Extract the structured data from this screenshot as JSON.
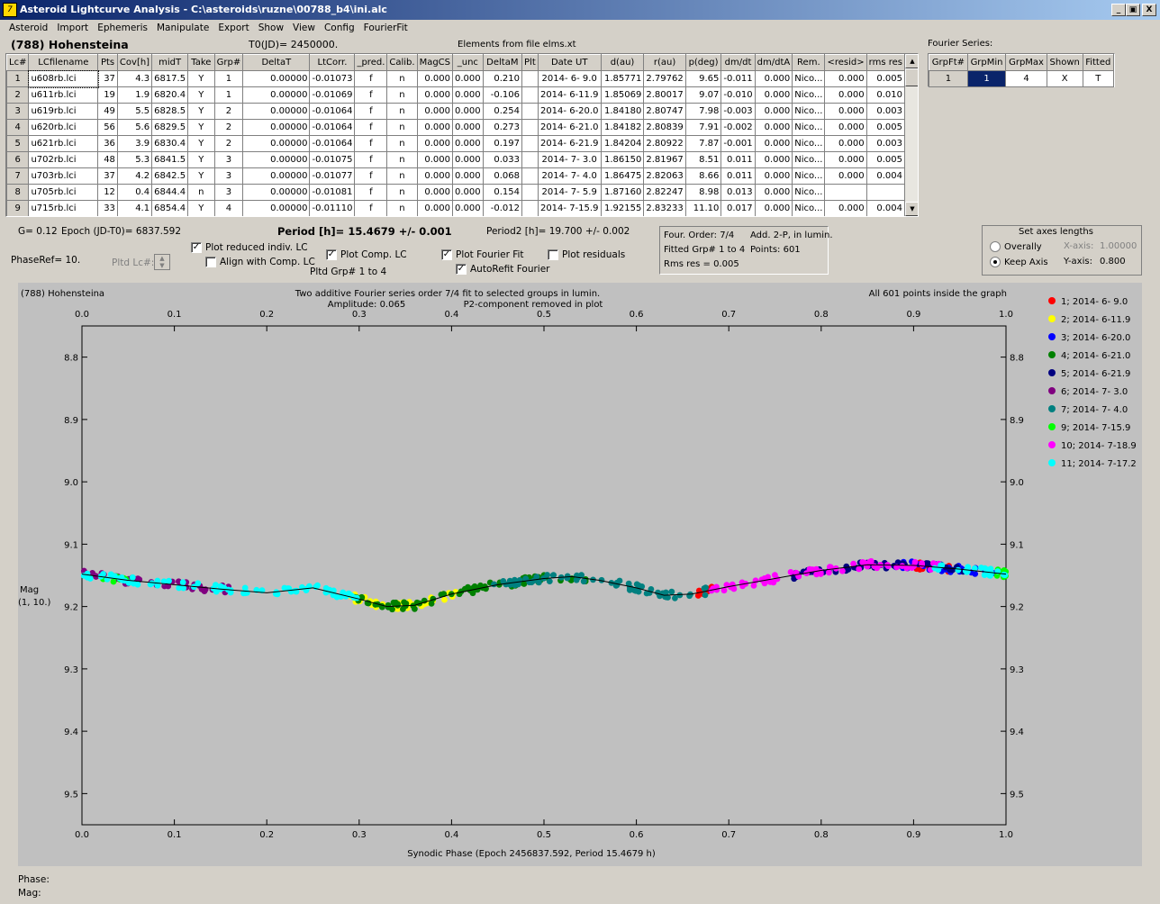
{
  "window": {
    "title": "Asteroid Lightcurve Analysis - C:\\asteroids\\ruzne\\00788_b4\\ini.alc",
    "icon": "app-icon",
    "controls": [
      "_",
      "Д",
      "X"
    ]
  },
  "menu": [
    "Asteroid",
    "Import",
    "Ephemeris",
    "Manipulate",
    "Export",
    "Show",
    "View",
    "Config",
    "FourierFit"
  ],
  "header": {
    "asteroid": "(788) Hohensteina",
    "t0": "T0(JD)= 2450000.",
    "elements": "Elements from file elms.xt"
  },
  "lc_table": {
    "columns": [
      "Lc#",
      "LCfilename",
      "Pts",
      "Cov[h]",
      "midT",
      "Take",
      "Grp#",
      "DeltaT",
      "LtCorr.",
      "_pred.",
      "Calib.",
      "MagCS",
      "_unc",
      "DeltaM",
      "Plt",
      "Date UT",
      "d(au)",
      "r(au)",
      "p(deg)",
      "dm/dt",
      "dm/dtA",
      "Rem.",
      "<resid>",
      "rms res"
    ],
    "rows": [
      [
        "1",
        "u608rb.lci",
        "37",
        "4.3",
        "6817.5",
        "Y",
        "1",
        "0.00000",
        "-0.01073",
        "f",
        "n",
        "0.000",
        "0.000",
        "0.210",
        "",
        "2014- 6- 9.0",
        "1.85771",
        "2.79762",
        "9.65",
        "-0.011",
        "0.000",
        "Nico...",
        "0.000",
        "0.005"
      ],
      [
        "2",
        "u611rb.lci",
        "19",
        "1.9",
        "6820.4",
        "Y",
        "1",
        "0.00000",
        "-0.01069",
        "f",
        "n",
        "0.000",
        "0.000",
        "-0.106",
        "",
        "2014- 6-11.9",
        "1.85069",
        "2.80017",
        "9.07",
        "-0.010",
        "0.000",
        "Nico...",
        "0.000",
        "0.010"
      ],
      [
        "3",
        "u619rb.lci",
        "49",
        "5.5",
        "6828.5",
        "Y",
        "2",
        "0.00000",
        "-0.01064",
        "f",
        "n",
        "0.000",
        "0.000",
        "0.254",
        "",
        "2014- 6-20.0",
        "1.84180",
        "2.80747",
        "7.98",
        "-0.003",
        "0.000",
        "Nico...",
        "0.000",
        "0.003"
      ],
      [
        "4",
        "u620rb.lci",
        "56",
        "5.6",
        "6829.5",
        "Y",
        "2",
        "0.00000",
        "-0.01064",
        "f",
        "n",
        "0.000",
        "0.000",
        "0.273",
        "",
        "2014- 6-21.0",
        "1.84182",
        "2.80839",
        "7.91",
        "-0.002",
        "0.000",
        "Nico...",
        "0.000",
        "0.005"
      ],
      [
        "5",
        "u621rb.lci",
        "36",
        "3.9",
        "6830.4",
        "Y",
        "2",
        "0.00000",
        "-0.01064",
        "f",
        "n",
        "0.000",
        "0.000",
        "0.197",
        "",
        "2014- 6-21.9",
        "1.84204",
        "2.80922",
        "7.87",
        "-0.001",
        "0.000",
        "Nico...",
        "0.000",
        "0.003"
      ],
      [
        "6",
        "u702rb.lci",
        "48",
        "5.3",
        "6841.5",
        "Y",
        "3",
        "0.00000",
        "-0.01075",
        "f",
        "n",
        "0.000",
        "0.000",
        "0.033",
        "",
        "2014- 7- 3.0",
        "1.86150",
        "2.81967",
        "8.51",
        "0.011",
        "0.000",
        "Nico...",
        "0.000",
        "0.005"
      ],
      [
        "7",
        "u703rb.lci",
        "37",
        "4.2",
        "6842.5",
        "Y",
        "3",
        "0.00000",
        "-0.01077",
        "f",
        "n",
        "0.000",
        "0.000",
        "0.068",
        "",
        "2014- 7- 4.0",
        "1.86475",
        "2.82063",
        "8.66",
        "0.011",
        "0.000",
        "Nico...",
        "0.000",
        "0.004"
      ],
      [
        "8",
        "u705rb.lci",
        "12",
        "0.4",
        "6844.4",
        "n",
        "3",
        "0.00000",
        "-0.01081",
        "f",
        "n",
        "0.000",
        "0.000",
        "0.154",
        "",
        "2014- 7- 5.9",
        "1.87160",
        "2.82247",
        "8.98",
        "0.013",
        "0.000",
        "Nico...",
        "",
        ""
      ],
      [
        "9",
        "u715rb.lci",
        "33",
        "4.1",
        "6854.4",
        "Y",
        "4",
        "0.00000",
        "-0.01110",
        "f",
        "n",
        "0.000",
        "0.000",
        "-0.012",
        "",
        "2014- 7-15.9",
        "1.92155",
        "2.83233",
        "11.10",
        "0.017",
        "0.000",
        "Nico...",
        "0.000",
        "0.004"
      ]
    ]
  },
  "fourier_table": {
    "title": "Fourier Series:",
    "columns": [
      "GrpFt#",
      "GrpMin",
      "GrpMax",
      "Shown",
      "Fitted"
    ],
    "row": [
      "1",
      "1",
      "4",
      "X",
      "T"
    ]
  },
  "info": {
    "g": "G= 0.12",
    "epoch": "Epoch (JD-T0)= 6837.592",
    "period": "Period [h]= 15.4679 +/- 0.001",
    "period2": "Period2 [h]= 19.700 +/- 0.002",
    "phaseref": "PhaseRef= 10.",
    "pltd_lc": "Pltd Lc#:",
    "pltd_grp": "Pltd Grp# 1 to 4"
  },
  "checks": [
    {
      "label": "Plot reduced indiv. LC",
      "checked": true
    },
    {
      "label": "Align with Comp. LC",
      "checked": false
    },
    {
      "label": "Plot Comp. LC",
      "checked": true
    },
    {
      "label": "Plot Fourier Fit",
      "checked": true
    },
    {
      "label": "AutoRefit Fourier",
      "checked": true
    },
    {
      "label": "Plot residuals",
      "checked": false
    }
  ],
  "fit_box": {
    "order": "Four. Order:  7/4",
    "add": "Add. 2-P, in lumin.",
    "fitted": "Fitted Grp# 1 to 4",
    "points": "Points: 601",
    "rms": "Rms res    = 0.005"
  },
  "axes_box": {
    "title": "Set axes lengths",
    "overall": "Overally",
    "keep": "Keep Axis",
    "xaxis_label": "X-axis:",
    "xaxis_value": "1.00000",
    "yaxis_label": "Y-axis:",
    "yaxis_value": "0.800"
  },
  "status": {
    "phase": "Phase:",
    "mag": "Mag:"
  },
  "chart_data": {
    "type": "scatter",
    "title": "Two additive Fourier series order 7/4 fit to selected groups in lumin.",
    "subtitle_left": "Amplitude: 0.065",
    "subtitle_right": "P2-component removed in plot",
    "corner_left": "(788) Hohensteina",
    "corner_right": "All 601 points inside the graph",
    "xlabel": "Synodic Phase (Epoch 2456837.592, Period 15.4679 h)",
    "ylabel": "Mag",
    "ylabel2": "(1, 10.)",
    "xlim": [
      0.0,
      1.0
    ],
    "ylim": [
      8.75,
      9.55
    ],
    "xticks": [
      "0.0",
      "0.1",
      "0.2",
      "0.3",
      "0.4",
      "0.5",
      "0.6",
      "0.7",
      "0.8",
      "0.9",
      "1.0"
    ],
    "yticks": [
      "8.8",
      "8.9",
      "9.0",
      "9.1",
      "9.2",
      "9.3",
      "9.4",
      "9.5"
    ],
    "fit_curve": {
      "x": [
        0.0,
        0.05,
        0.1,
        0.15,
        0.2,
        0.25,
        0.3,
        0.33,
        0.36,
        0.4,
        0.45,
        0.5,
        0.53,
        0.56,
        0.6,
        0.63,
        0.66,
        0.7,
        0.75,
        0.8,
        0.85,
        0.9,
        0.95,
        1.0
      ],
      "y": [
        9.148,
        9.158,
        9.165,
        9.172,
        9.178,
        9.17,
        9.188,
        9.2,
        9.198,
        9.18,
        9.165,
        9.155,
        9.152,
        9.158,
        9.17,
        9.182,
        9.18,
        9.168,
        9.155,
        9.142,
        9.133,
        9.134,
        9.14,
        9.148
      ]
    },
    "series": [
      {
        "name": "1; 2014- 6- 9.0",
        "color": "#ff0000",
        "ranges": [
          [
            0.665,
            0.69
          ],
          [
            0.9,
            0.94
          ]
        ]
      },
      {
        "name": "2; 2014- 6-11.9",
        "color": "#ffff00",
        "ranges": [
          [
            0.285,
            0.41
          ]
        ]
      },
      {
        "name": "3; 2014- 6-20.0",
        "color": "#0000ff",
        "ranges": [
          [
            0.88,
            0.99
          ]
        ]
      },
      {
        "name": "4; 2014- 6-21.0",
        "color": "#008000",
        "ranges": [
          [
            0.29,
            0.44
          ],
          [
            0.42,
            0.55
          ]
        ]
      },
      {
        "name": "5; 2014- 6-21.9",
        "color": "#000080",
        "ranges": [
          [
            0.77,
            0.96
          ]
        ]
      },
      {
        "name": "6; 2014- 7- 3.0",
        "color": "#800080",
        "ranges": [
          [
            0.0,
            0.16
          ]
        ]
      },
      {
        "name": "7; 2014- 7- 4.0",
        "color": "#008080",
        "ranges": [
          [
            0.44,
            0.68
          ]
        ]
      },
      {
        "name": "9; 2014- 7-15.9",
        "color": "#00ff00",
        "ranges": [
          [
            0.02,
            0.05
          ],
          [
            0.99,
            1.0
          ]
        ]
      },
      {
        "name": "10; 2014- 7-18.9",
        "color": "#ff00ff",
        "ranges": [
          [
            0.68,
            0.93
          ]
        ]
      },
      {
        "name": "11; 2014- 7-17.2",
        "color": "#00ffff",
        "ranges": [
          [
            0.0,
            0.3
          ],
          [
            0.92,
            1.0
          ]
        ]
      }
    ]
  }
}
